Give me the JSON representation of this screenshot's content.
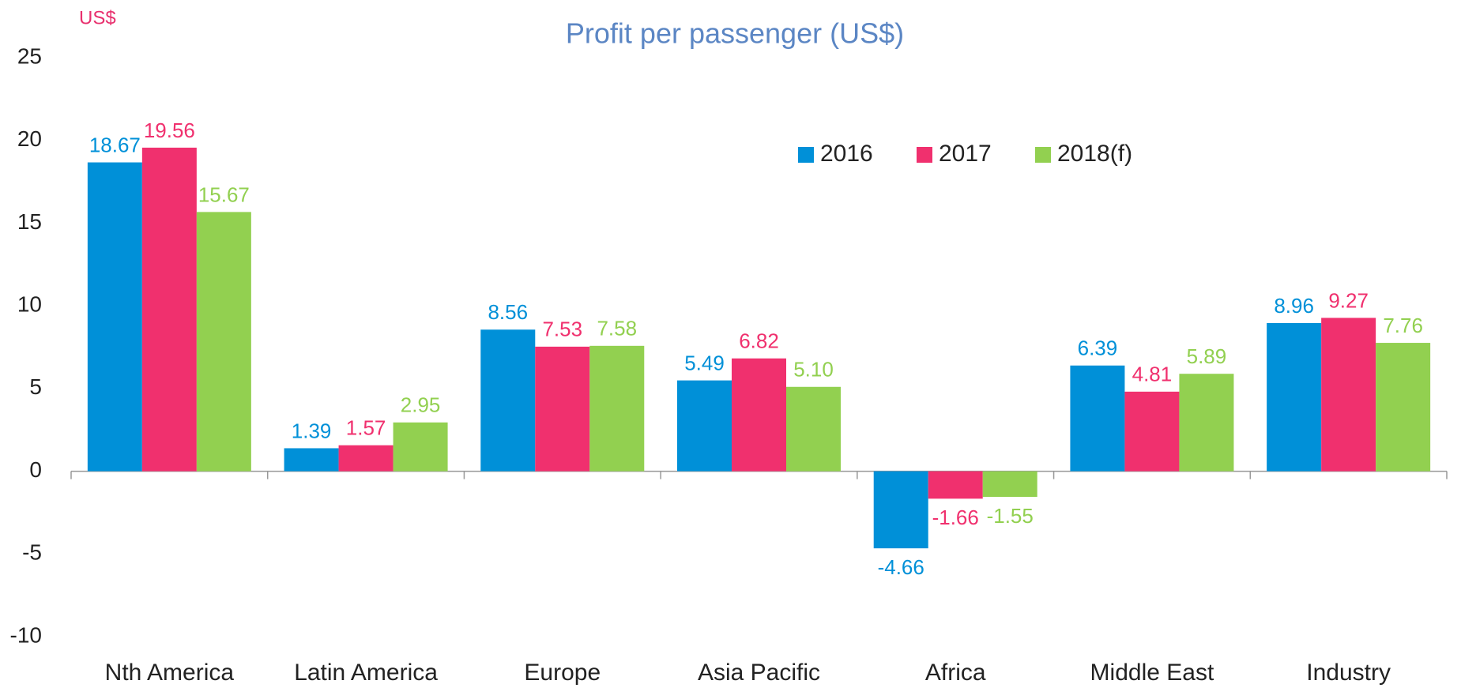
{
  "chart_data": {
    "type": "bar",
    "title": "Profit per passenger (US$)",
    "y_label": "US$",
    "categories": [
      "Nth America",
      "Latin America",
      "Europe",
      "Asia Pacific",
      "Africa",
      "Middle East",
      "Industry"
    ],
    "series": [
      {
        "name": "2016",
        "color": "#0090d8",
        "values": [
          18.67,
          1.39,
          8.56,
          5.49,
          -4.66,
          6.39,
          8.96
        ],
        "value_labels": [
          "18.67",
          "1.39",
          "8.56",
          "5.49",
          "-4.66",
          "6.39",
          "8.96"
        ]
      },
      {
        "name": "2017",
        "color": "#f0306e",
        "values": [
          19.56,
          1.57,
          7.53,
          6.82,
          -1.66,
          4.81,
          9.27
        ],
        "value_labels": [
          "19.56",
          "1.57",
          "7.53",
          "6.82",
          "-1.66",
          "4.81",
          "9.27"
        ]
      },
      {
        "name": "2018(f)",
        "color": "#92d050",
        "values": [
          15.67,
          2.95,
          7.58,
          5.1,
          -1.55,
          5.89,
          7.76
        ],
        "value_labels": [
          "15.67",
          "2.95",
          "7.58",
          "5.10",
          "-1.55",
          "5.89",
          "7.76"
        ]
      }
    ],
    "ylim": [
      -10,
      25
    ],
    "yticks": [
      -10,
      -5,
      0,
      5,
      10,
      15,
      20,
      25
    ],
    "grid": false,
    "legend": "top-right"
  }
}
